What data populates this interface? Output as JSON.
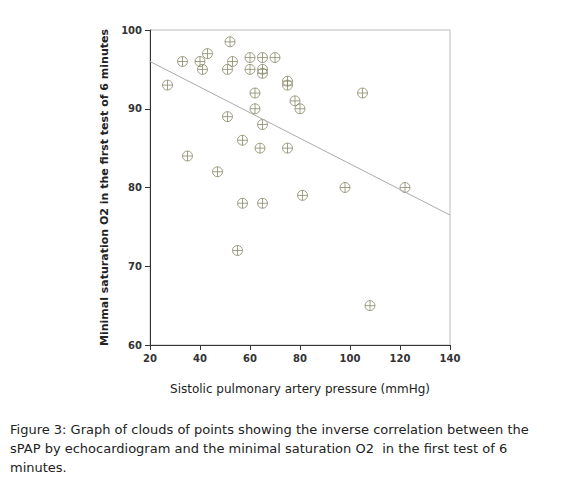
{
  "chart_data": {
    "type": "scatter",
    "caption": "Figure 3: Graph of clouds of points showing the inverse correlation between the sPAP by echocardiogram and the minimal saturation O2  in the first test of 6 minutes.",
    "x_label": "Sistolic pulmonary artery pressure (mmHg)",
    "y_label": "Minimal saturation O2 in the first test of 6 minutes",
    "x": [
      27,
      33,
      35,
      40,
      41,
      43,
      47,
      51,
      51,
      52,
      53,
      55,
      57,
      57,
      60,
      60,
      62,
      62,
      64,
      65,
      65,
      65,
      65,
      65,
      70,
      75,
      75,
      75,
      78,
      80,
      81,
      98,
      105,
      108,
      122
    ],
    "values": [
      93,
      96,
      84,
      96,
      95,
      97,
      82,
      89,
      95,
      98.5,
      96,
      72,
      86,
      78,
      96.5,
      95,
      92,
      90,
      85,
      88,
      96.5,
      95,
      94.5,
      78,
      96.5,
      93.5,
      93,
      85,
      91,
      90,
      79,
      80,
      92,
      65,
      80
    ],
    "color": "#8a8a6a",
    "marker": "circle-cross",
    "trend_line": {
      "x": [
        20,
        140
      ],
      "y": [
        96,
        76.5
      ],
      "color": "#aaaaaa"
    },
    "xlim": [
      20,
      140
    ],
    "xticks": [
      20,
      40,
      60,
      80,
      100,
      120,
      140
    ],
    "ylim": [
      60,
      100
    ],
    "yticks": [
      60,
      70,
      80,
      90,
      100
    ],
    "grid": false
  }
}
